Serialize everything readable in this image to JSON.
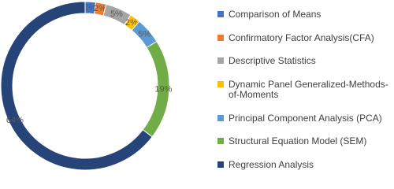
{
  "chart_data": {
    "type": "donut",
    "categories": [
      "Comparison of Means",
      "Confirmatory Factor Analysis(CFA)",
      "Descriptive Statistics",
      "Dynamic Panel Generalized-Methods-of-Moments",
      "Principal Component Analysis (PCA)",
      "Structural Equation Model (SEM)",
      "Regression Analysis"
    ],
    "values": [
      2,
      2,
      5,
      2,
      5,
      19,
      64
    ],
    "value_labels": [
      "2%",
      "2%",
      "5%",
      "2%",
      "5%",
      "19%",
      "64%"
    ],
    "colors": [
      "#4472c4",
      "#ed7d31",
      "#a5a5a5",
      "#ffc000",
      "#5b9bd5",
      "#70ad47",
      "#264478"
    ]
  }
}
